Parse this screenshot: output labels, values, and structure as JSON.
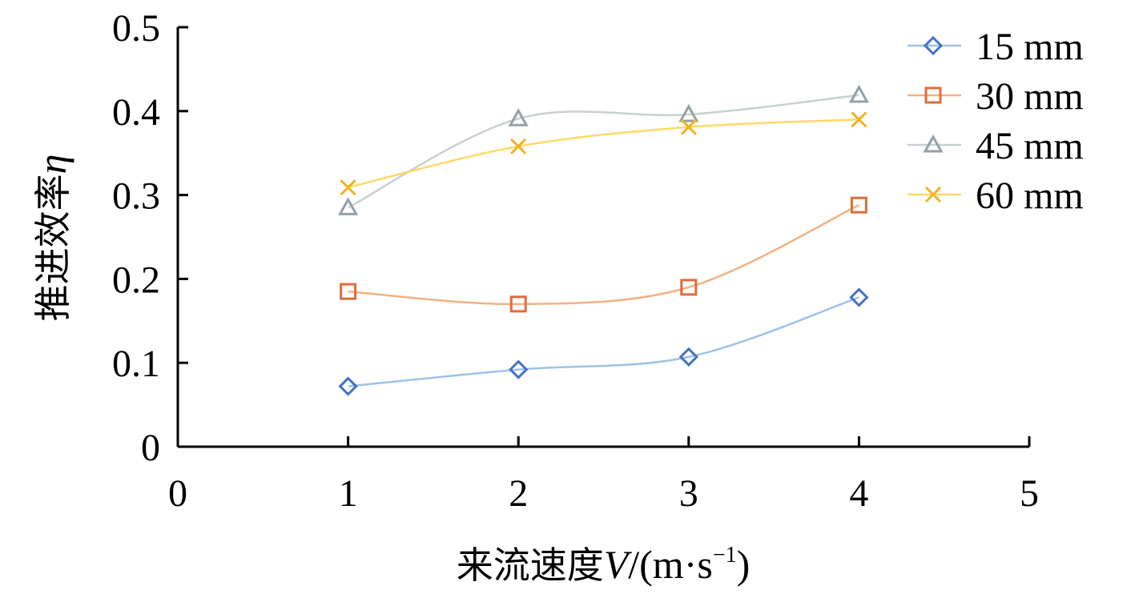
{
  "chart_data": {
    "type": "line",
    "title": "",
    "xlabel_prefix": "来流速度",
    "xlabel_var": "V",
    "xlabel_unit": "/(m·s",
    "xlabel_exp": "−1",
    "xlabel_close": ")",
    "ylabel_prefix": "推进效率",
    "ylabel_var": "η",
    "xlim": [
      0,
      5
    ],
    "ylim": [
      0,
      0.5
    ],
    "x_ticks": [
      "0",
      "1",
      "2",
      "3",
      "4",
      "5"
    ],
    "y_ticks": [
      "0",
      "0.1",
      "0.2",
      "0.3",
      "0.4",
      "0.5"
    ],
    "x_tick_values": [
      0,
      1,
      2,
      3,
      4,
      5
    ],
    "y_tick_values": [
      0,
      0.1,
      0.2,
      0.3,
      0.4,
      0.5
    ],
    "x": [
      1,
      2,
      3,
      4
    ],
    "grid": false,
    "legend_position": "top-right",
    "series": [
      {
        "name": "15 mm",
        "marker": "diamond",
        "line_color": "#9DC3E6",
        "marker_color": "#4472C4",
        "values": [
          0.072,
          0.092,
          0.107,
          0.178
        ]
      },
      {
        "name": "30 mm",
        "marker": "square",
        "line_color": "#F4B183",
        "marker_color": "#E06C3A",
        "values": [
          0.185,
          0.17,
          0.19,
          0.288
        ]
      },
      {
        "name": "45 mm",
        "marker": "triangle",
        "line_color": "#C9D0D0",
        "marker_color": "#92A2A6",
        "values": [
          0.285,
          0.391,
          0.396,
          0.419
        ]
      },
      {
        "name": "60 mm",
        "marker": "x",
        "line_color": "#FFD966",
        "marker_color": "#F0B323",
        "values": [
          0.309,
          0.358,
          0.381,
          0.39
        ]
      }
    ]
  }
}
